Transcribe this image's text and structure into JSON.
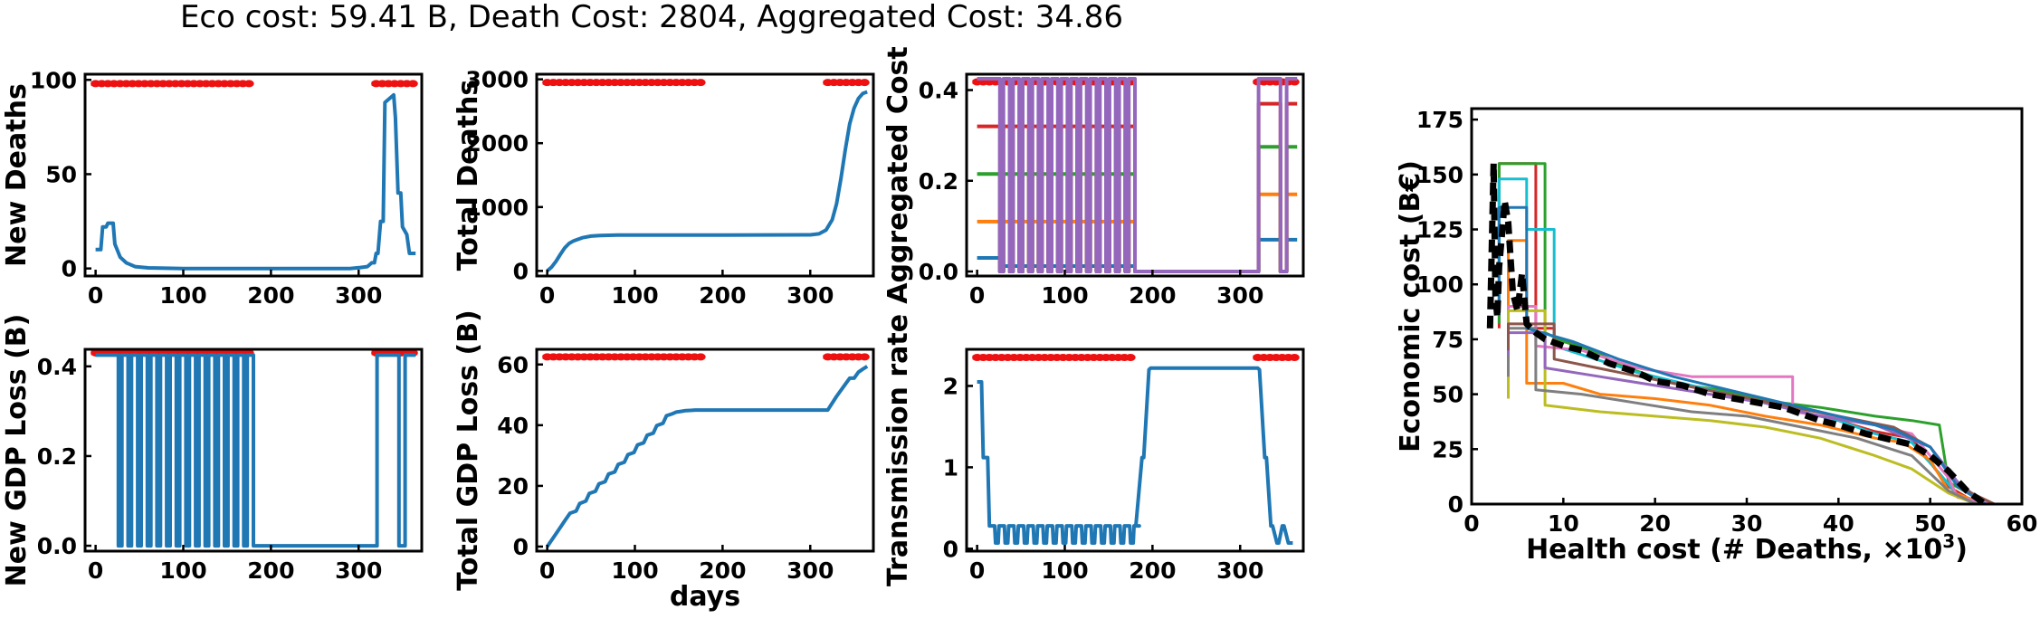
{
  "title": "Eco cost: 59.41 B, Death Cost: 2804, Aggregated Cost: 34.86",
  "chart_data": [
    {
      "id": "new_deaths",
      "type": "line",
      "ylabel": "New Deaths",
      "xlabel": "",
      "xlim": [
        -12,
        372
      ],
      "ylim": [
        -4,
        103
      ],
      "xticks": [
        0,
        100,
        200,
        300
      ],
      "yticks": [
        0,
        50,
        100
      ],
      "ytick_labels": [
        "0",
        "50",
        "100"
      ],
      "lockdown_days_y": 98,
      "series": [
        {
          "name": "new deaths",
          "color": "#1f77b4",
          "x": [
            0,
            6,
            8,
            12,
            14,
            20,
            22,
            28,
            35,
            45,
            60,
            100,
            200,
            290,
            302,
            310,
            315,
            318,
            320,
            322,
            325,
            328,
            330,
            340,
            342,
            345,
            348,
            350,
            355,
            358,
            360,
            365
          ],
          "y": [
            10,
            10,
            22,
            22,
            24,
            24,
            13,
            6,
            3,
            1,
            0.3,
            0,
            0,
            0,
            0.5,
            1,
            3,
            3,
            8,
            8,
            25,
            25,
            88,
            92,
            80,
            40,
            40,
            22,
            18,
            8,
            8,
            8
          ]
        }
      ]
    },
    {
      "id": "total_deaths",
      "type": "line",
      "ylabel": "Total Deaths",
      "xlabel": "",
      "xlim": [
        -12,
        372
      ],
      "ylim": [
        -80,
        3080
      ],
      "xticks": [
        0,
        100,
        200,
        300
      ],
      "yticks": [
        0,
        1000,
        2000,
        3000
      ],
      "ytick_labels": [
        "0",
        "1000",
        "2000",
        "3000"
      ],
      "lockdown_days_y": 2950,
      "series": [
        {
          "name": "total deaths",
          "color": "#1f77b4",
          "x": [
            0,
            5,
            10,
            15,
            20,
            25,
            30,
            40,
            50,
            60,
            80,
            100,
            200,
            300,
            310,
            318,
            325,
            330,
            335,
            340,
            345,
            350,
            355,
            360,
            365
          ],
          "y": [
            0,
            60,
            150,
            260,
            360,
            430,
            470,
            520,
            545,
            555,
            560,
            562,
            562,
            565,
            580,
            640,
            800,
            1050,
            1450,
            1900,
            2300,
            2550,
            2700,
            2780,
            2804
          ]
        }
      ]
    },
    {
      "id": "aggregated_cost",
      "type": "line",
      "ylabel": "Aggregated Cost",
      "xlabel": "",
      "xlim": [
        -12,
        372
      ],
      "ylim": [
        -0.01,
        0.435
      ],
      "xticks": [
        0,
        100,
        200,
        300
      ],
      "yticks": [
        0,
        0.2,
        0.4
      ],
      "ytick_labels": [
        "0.0",
        "0.2",
        "0.4"
      ],
      "lockdown_days_y": 0.418,
      "pattern": {
        "phase1_start": 0,
        "phase1_pulses_start": 26,
        "period": 11,
        "on_len": 7,
        "phase1_end": 181,
        "phase2_start": 321,
        "gap": [
          346,
          353
        ],
        "end": 365
      },
      "series": [
        {
          "name": "c0",
          "color": "#1f77b4",
          "high": 0.012,
          "first_phase_high": 0.03,
          "phase2_high": 0.07
        },
        {
          "name": "c1",
          "color": "#ff7f0e",
          "high": 0.11,
          "first_phase_high": 0.11,
          "phase2_high": 0.17
        },
        {
          "name": "c2",
          "color": "#2ca02c",
          "high": 0.215,
          "first_phase_high": 0.215,
          "phase2_high": 0.275
        },
        {
          "name": "c3",
          "color": "#d62728",
          "high": 0.32,
          "first_phase_high": 0.32,
          "phase2_high": 0.37
        },
        {
          "name": "c4",
          "color": "#9467bd",
          "high": 0.425,
          "first_phase_high": 0.425,
          "phase2_high": 0.425
        }
      ]
    },
    {
      "id": "new_gdp_loss",
      "type": "line",
      "ylabel": "New GDP Loss (B)",
      "xlabel": "",
      "xlim": [
        -12,
        372
      ],
      "ylim": [
        -0.012,
        0.438
      ],
      "xticks": [
        0,
        100,
        200,
        300
      ],
      "yticks": [
        0,
        0.2,
        0.4
      ],
      "ytick_labels": [
        "0.0",
        "0.2",
        "0.4"
      ],
      "lockdown_days_y": 0.43,
      "pattern": {
        "phase1_pulses_start": 26,
        "period": 11,
        "on_len": 7,
        "phase1_end": 181,
        "phase2_start": 321,
        "gap": [
          346,
          353
        ],
        "end": 365
      },
      "series": [
        {
          "name": "new gdp loss",
          "color": "#1f77b4",
          "high": 0.425,
          "low": 0
        }
      ]
    },
    {
      "id": "total_gdp_loss",
      "type": "line",
      "ylabel": "Total GDP Loss (B)",
      "xlabel": "days",
      "xlim": [
        -12,
        372
      ],
      "ylim": [
        -1.5,
        65
      ],
      "xticks": [
        0,
        100,
        200,
        300
      ],
      "yticks": [
        0,
        20,
        40,
        60
      ],
      "ytick_labels": [
        "0",
        "20",
        "40",
        "60"
      ],
      "lockdown_days_y": 62.5,
      "series": [
        {
          "name": "total gdp loss",
          "color": "#1f77b4",
          "x": [
            0,
            10,
            20,
            26,
            33,
            37,
            44,
            48,
            55,
            59,
            66,
            70,
            77,
            81,
            88,
            92,
            99,
            103,
            110,
            114,
            121,
            125,
            132,
            136,
            143,
            147,
            154,
            158,
            165,
            169,
            176,
            181,
            320,
            330,
            340,
            345,
            350,
            355,
            360,
            365
          ],
          "y": [
            0,
            4.2,
            8.5,
            11.0,
            11.7,
            14.2,
            15.0,
            17.5,
            18.2,
            20.7,
            21.4,
            23.9,
            24.6,
            27.1,
            27.8,
            30.3,
            31.0,
            33.5,
            34.2,
            36.7,
            37.4,
            39.9,
            40.6,
            43.1,
            43.8,
            44.3,
            44.6,
            44.8,
            44.9,
            45.0,
            45.0,
            45.0,
            45.0,
            49.5,
            53.5,
            55.5,
            55.5,
            57.5,
            58.5,
            59.4
          ]
        }
      ]
    },
    {
      "id": "transmission_rate",
      "type": "line",
      "ylabel": "Transmission rate",
      "xlabel": "",
      "xlim": [
        -12,
        372
      ],
      "ylim": [
        -0.03,
        2.45
      ],
      "xticks": [
        0,
        100,
        200,
        300
      ],
      "yticks": [
        0,
        1,
        2
      ],
      "ytick_labels": [
        "0",
        "1",
        "2"
      ],
      "lockdown_days_y": 2.35,
      "series": [
        {
          "name": "transmission",
          "color": "#1f77b4",
          "x": [
            0,
            5,
            7,
            12,
            14,
            18,
            20
          ],
          "y": [
            2.05,
            2.05,
            1.12,
            1.12,
            0.28,
            0.28,
            0.28
          ],
          "oscillation": {
            "start": 20,
            "end": 181,
            "period": 11,
            "on_len": 7,
            "high": 0.28,
            "low": 0.07
          },
          "tail_x": [
            181,
            188,
            190,
            196,
            198,
            320,
            322,
            328,
            330,
            335,
            337,
            342,
            344,
            348,
            350,
            355,
            357,
            360
          ],
          "tail_y": [
            0.28,
            1.12,
            1.12,
            2.2,
            2.22,
            2.22,
            2.2,
            1.12,
            1.12,
            0.28,
            0.28,
            0.07,
            0.07,
            0.28,
            0.28,
            0.07,
            0.07,
            0.07
          ]
        }
      ]
    },
    {
      "id": "pareto",
      "type": "line",
      "ylabel": "Economic cost (B€)",
      "xlabel": "Health cost (# Deaths, ×10",
      "xlabel_sup": "3",
      "xlabel_end": ")",
      "xlim": [
        0,
        60
      ],
      "ylim": [
        0,
        180
      ],
      "xticks": [
        0,
        10,
        20,
        30,
        40,
        50,
        60
      ],
      "yticks": [
        0,
        25,
        50,
        75,
        100,
        125,
        150,
        175
      ],
      "ytick_labels": [
        "0",
        "25",
        "50",
        "75",
        "100",
        "125",
        "150",
        "175"
      ],
      "series": [
        {
          "name": "run-red",
          "color": "#d62728",
          "x": [
            3,
            3,
            7,
            7,
            9,
            9,
            12,
            14,
            18,
            22,
            28,
            32,
            36,
            40,
            44,
            48,
            52,
            54,
            55
          ],
          "y": [
            80,
            155,
            155,
            80,
            80,
            75,
            72,
            68,
            60,
            55,
            50,
            46,
            42,
            38,
            33,
            30,
            8,
            3,
            0
          ]
        },
        {
          "name": "run-green",
          "color": "#2ca02c",
          "x": [
            3,
            3,
            8,
            8,
            10,
            13,
            17,
            22,
            27,
            32,
            38,
            44,
            48,
            51,
            52,
            55,
            56
          ],
          "y": [
            82,
            155,
            155,
            78,
            74,
            70,
            62,
            55,
            52,
            47,
            44,
            40,
            38,
            36,
            10,
            3,
            0
          ]
        },
        {
          "name": "run-cyan",
          "color": "#17becf",
          "x": [
            3,
            3,
            6,
            6,
            9,
            9,
            12,
            18,
            24,
            30,
            36,
            40,
            44,
            48,
            51,
            53,
            56
          ],
          "y": [
            86,
            148,
            148,
            125,
            125,
            72,
            68,
            60,
            54,
            48,
            42,
            38,
            32,
            28,
            14,
            4,
            0
          ]
        },
        {
          "name": "run-orange",
          "color": "#ff7f0e",
          "x": [
            4,
            4,
            6,
            6,
            10,
            14,
            20,
            26,
            32,
            38,
            44,
            47,
            50,
            52,
            56
          ],
          "y": [
            55,
            120,
            120,
            55,
            55,
            50,
            48,
            45,
            40,
            36,
            30,
            28,
            20,
            6,
            0
          ]
        },
        {
          "name": "run-pink",
          "color": "#e377c2",
          "x": [
            4,
            4,
            7,
            7,
            12,
            18,
            24,
            30,
            35,
            35,
            42,
            48,
            52,
            53,
            57
          ],
          "y": [
            75,
            90,
            90,
            72,
            70,
            62,
            58,
            58,
            58,
            42,
            38,
            32,
            12,
            3,
            0
          ]
        },
        {
          "name": "run-olive",
          "color": "#bcbd22",
          "x": [
            4,
            4,
            8,
            8,
            14,
            20,
            26,
            32,
            38,
            44,
            48,
            52,
            55
          ],
          "y": [
            48,
            88,
            88,
            45,
            42,
            40,
            38,
            35,
            30,
            22,
            16,
            5,
            0
          ]
        },
        {
          "name": "run-gray",
          "color": "#7f7f7f",
          "x": [
            4,
            4,
            7,
            7,
            12,
            18,
            24,
            30,
            36,
            42,
            48,
            52,
            55
          ],
          "y": [
            58,
            80,
            80,
            52,
            50,
            46,
            42,
            40,
            35,
            30,
            22,
            6,
            0
          ]
        },
        {
          "name": "run-purple",
          "color": "#9467bd",
          "x": [
            4,
            4,
            8,
            8,
            14,
            20,
            26,
            32,
            38,
            44,
            50,
            53,
            56
          ],
          "y": [
            68,
            78,
            78,
            62,
            58,
            54,
            50,
            46,
            40,
            36,
            26,
            10,
            0
          ]
        },
        {
          "name": "run-brown",
          "color": "#8c564b",
          "x": [
            4,
            4,
            9,
            9,
            16,
            22,
            28,
            34,
            40,
            46,
            50,
            53,
            57
          ],
          "y": [
            70,
            82,
            82,
            66,
            60,
            55,
            50,
            45,
            40,
            35,
            26,
            8,
            0
          ]
        },
        {
          "name": "run-blue",
          "color": "#1f77b4",
          "x": [
            3,
            3,
            6,
            6,
            11,
            16,
            22,
            28,
            34,
            40,
            46,
            50,
            53,
            56
          ],
          "y": [
            90,
            135,
            135,
            80,
            74,
            66,
            58,
            52,
            46,
            40,
            34,
            26,
            8,
            0
          ]
        },
        {
          "name": "mean",
          "color": "#000000",
          "dashed": true,
          "x": [
            2,
            2.4,
            2.6,
            2.8,
            3.0,
            3.3,
            3.6,
            4.0,
            4.5,
            5.0,
            5.5,
            6,
            7,
            8,
            10,
            12,
            15,
            18,
            20,
            23,
            26,
            30,
            34,
            36,
            38,
            40,
            43,
            46,
            48,
            50,
            52,
            54,
            56
          ],
          "y": [
            80,
            155,
            95,
            85,
            108,
            122,
            138,
            128,
            96,
            88,
            105,
            82,
            78,
            75,
            72,
            70,
            64,
            60,
            56,
            54,
            50,
            47,
            44,
            41,
            38,
            36,
            32,
            29,
            27,
            22,
            15,
            6,
            0
          ]
        }
      ]
    }
  ]
}
